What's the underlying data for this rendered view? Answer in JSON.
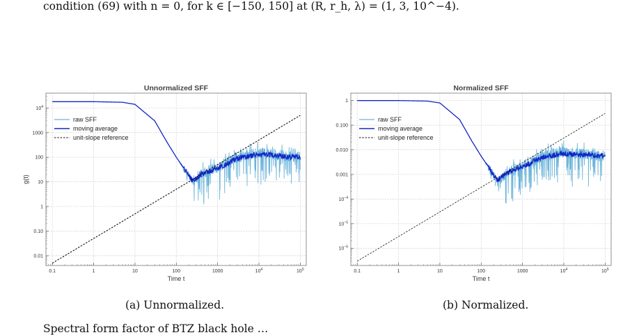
{
  "text": {
    "top_line": "condition (69) with n = 0, for k ∈ [−150, 150] at (R, r_h, λ) = (1, 3, 10^−4).",
    "bottom_line": "Spectral form factor of BTZ black hole …"
  },
  "captions": {
    "a": "(a) Unnormalized.",
    "b": "(b) Normalized."
  },
  "colors": {
    "raw": "#6cb4d9",
    "avg": "#1426c8",
    "ref": "#111111",
    "grid": "#cfcfcf"
  },
  "chart_data": [
    {
      "type": "line",
      "title": "Unnormalized SFF",
      "xlabel": "Time t",
      "ylabel": "g(t)",
      "log_x": true,
      "log_y": true,
      "xlim": [
        0.07,
        140000
      ],
      "ylim": [
        0.004,
        40000
      ],
      "x_ticks": [
        "0.1",
        "1",
        "10",
        "100",
        "1000",
        "10^4",
        "10^5"
      ],
      "y_ticks": [
        "0.01",
        "0.10",
        "1",
        "10",
        "100",
        "1000",
        "10^4"
      ],
      "legend": [
        "raw SFF",
        "moving average",
        "unit-slope reference"
      ],
      "legend_position": "top-left",
      "series": [
        {
          "name": "raw SFF",
          "x": [
            0.1,
            1,
            5,
            10,
            30,
            60,
            100,
            200,
            250,
            400,
            1000,
            3000,
            10000,
            100000
          ],
          "y": [
            18000,
            18000,
            17000,
            14000,
            3000,
            400,
            100,
            20,
            8,
            20,
            40,
            100,
            150,
            100
          ]
        },
        {
          "name": "moving average",
          "x": [
            0.1,
            1,
            5,
            10,
            30,
            60,
            100,
            200,
            250,
            400,
            1000,
            3000,
            10000,
            100000
          ],
          "y": [
            18000,
            18000,
            17000,
            14000,
            3000,
            400,
            100,
            18,
            11,
            20,
            35,
            90,
            130,
            100
          ]
        },
        {
          "name": "unit-slope reference",
          "x": [
            0.1,
            100000
          ],
          "y": [
            0.005,
            5000
          ]
        }
      ]
    },
    {
      "type": "line",
      "title": "Normalized SFF",
      "xlabel": "Time t",
      "ylabel": "",
      "log_x": true,
      "log_y": true,
      "xlim": [
        0.07,
        140000
      ],
      "ylim": [
        2e-07,
        2
      ],
      "x_ticks": [
        "0.1",
        "1",
        "10",
        "100",
        "1000",
        "10^4",
        "10^5"
      ],
      "y_ticks": [
        "10^-6",
        "10^-5",
        "10^-4",
        "0.001",
        "0.010",
        "0.100",
        "1"
      ],
      "legend": [
        "raw SFF",
        "moving average",
        "unit-slope reference"
      ],
      "legend_position": "top-left",
      "series": [
        {
          "name": "raw SFF",
          "x": [
            0.1,
            1,
            5,
            10,
            30,
            60,
            100,
            200,
            250,
            400,
            1000,
            3000,
            10000,
            100000
          ],
          "y": [
            1,
            1,
            0.95,
            0.8,
            0.17,
            0.022,
            0.0055,
            0.0011,
            0.00045,
            0.0011,
            0.0022,
            0.0055,
            0.008,
            0.0055
          ]
        },
        {
          "name": "moving average",
          "x": [
            0.1,
            1,
            5,
            10,
            30,
            60,
            100,
            200,
            250,
            400,
            1000,
            3000,
            10000,
            100000
          ],
          "y": [
            1,
            1,
            0.95,
            0.8,
            0.17,
            0.022,
            0.0055,
            0.001,
            0.0006,
            0.0011,
            0.002,
            0.005,
            0.007,
            0.0055
          ]
        },
        {
          "name": "unit-slope reference",
          "x": [
            0.1,
            100000
          ],
          "y": [
            3e-07,
            0.3
          ]
        }
      ]
    }
  ]
}
